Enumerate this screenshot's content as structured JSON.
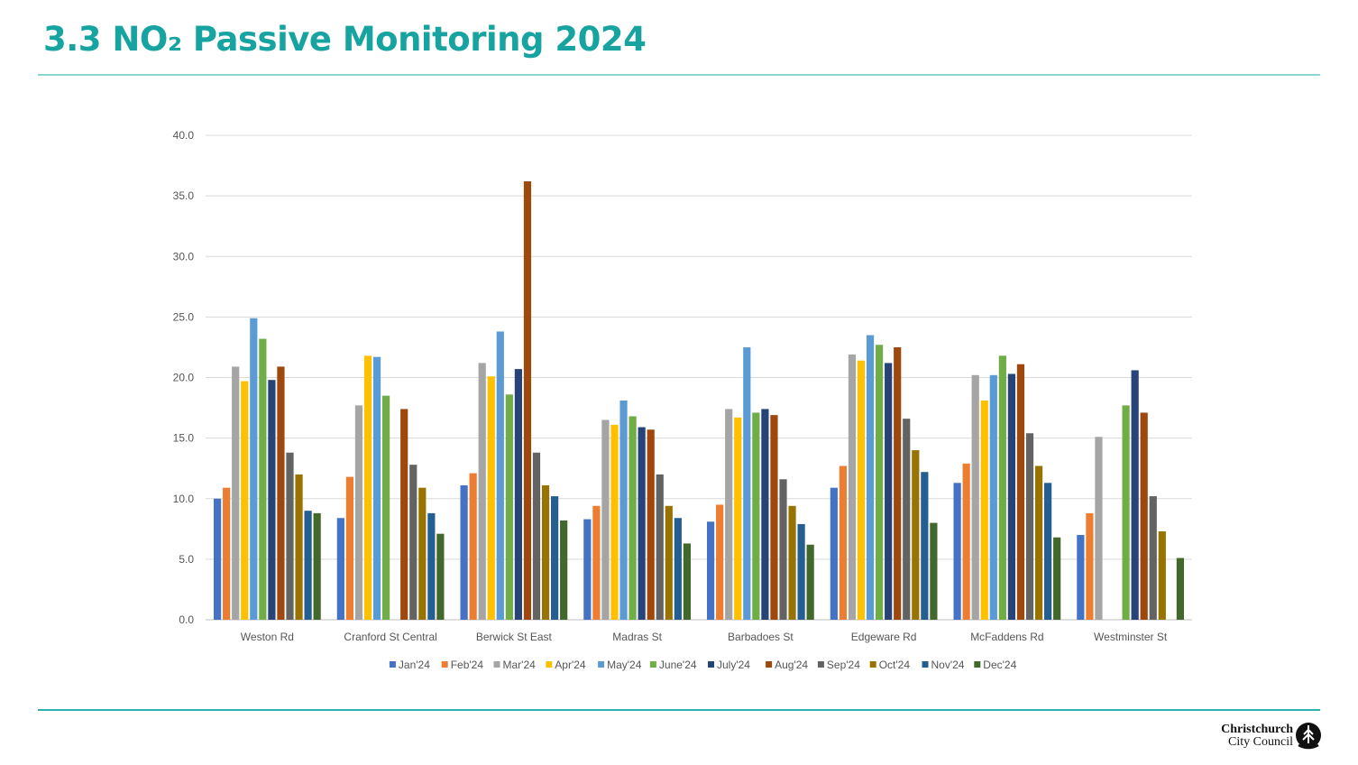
{
  "page": {
    "title": "3.3 NO₂ Passive Monitoring 2024",
    "logo": {
      "line1": "Christchurch",
      "line2": "City Council",
      "icon": "council-emblem-icon"
    }
  },
  "colors": {
    "title": "#17a3a0",
    "rule": "#2bb3ad"
  },
  "chart_data": {
    "type": "bar",
    "title": "",
    "xlabel": "",
    "ylabel": "",
    "ylim": [
      0,
      40
    ],
    "yticks": [
      "0.0",
      "5.0",
      "10.0",
      "15.0",
      "20.0",
      "25.0",
      "30.0",
      "35.0",
      "40.0"
    ],
    "grid": true,
    "legend_position": "bottom",
    "categories": [
      "Weston Rd",
      "Cranford St Central",
      "Berwick St East",
      "Madras St",
      "Barbadoes St",
      "Edgeware Rd",
      "McFaddens Rd",
      "Westminster St"
    ],
    "series": [
      {
        "name": "Jan'24",
        "color": "#4472c4",
        "values": [
          10.0,
          8.4,
          11.1,
          8.3,
          8.1,
          10.9,
          11.3,
          7.0
        ]
      },
      {
        "name": "Feb'24",
        "color": "#ed7d31",
        "values": [
          10.9,
          11.8,
          12.1,
          9.4,
          9.5,
          12.7,
          12.9,
          8.8
        ]
      },
      {
        "name": "Mar'24",
        "color": "#a5a5a5",
        "values": [
          20.9,
          17.7,
          21.2,
          16.5,
          17.4,
          21.9,
          20.2,
          15.1
        ]
      },
      {
        "name": "Apr'24",
        "color": "#ffc000",
        "values": [
          19.7,
          21.8,
          20.1,
          16.1,
          16.7,
          21.4,
          18.1,
          null
        ]
      },
      {
        "name": "May'24",
        "color": "#5b9bd5",
        "values": [
          24.9,
          21.7,
          23.8,
          18.1,
          22.5,
          23.5,
          20.2,
          null
        ]
      },
      {
        "name": "June'24",
        "color": "#70ad47",
        "values": [
          23.2,
          18.5,
          18.6,
          16.8,
          17.1,
          22.7,
          21.8,
          17.7
        ]
      },
      {
        "name": "July'24",
        "color": "#264478",
        "values": [
          19.8,
          null,
          20.7,
          15.9,
          17.4,
          21.2,
          20.3,
          20.6
        ]
      },
      {
        "name": "Aug'24",
        "color": "#9e480e",
        "values": [
          20.9,
          17.4,
          36.2,
          15.7,
          16.9,
          22.5,
          21.1,
          17.1
        ]
      },
      {
        "name": "Sep'24",
        "color": "#636363",
        "values": [
          13.8,
          12.8,
          13.8,
          12.0,
          11.6,
          16.6,
          15.4,
          10.2
        ]
      },
      {
        "name": "Oct'24",
        "color": "#997300",
        "values": [
          12.0,
          10.9,
          11.1,
          9.4,
          9.4,
          14.0,
          12.7,
          7.3
        ]
      },
      {
        "name": "Nov'24",
        "color": "#255e91",
        "values": [
          9.0,
          8.8,
          10.2,
          8.4,
          7.9,
          12.2,
          11.3,
          null
        ]
      },
      {
        "name": "Dec'24",
        "color": "#43682b",
        "values": [
          8.8,
          7.1,
          8.2,
          6.3,
          6.2,
          8.0,
          6.8,
          5.1
        ]
      }
    ]
  }
}
